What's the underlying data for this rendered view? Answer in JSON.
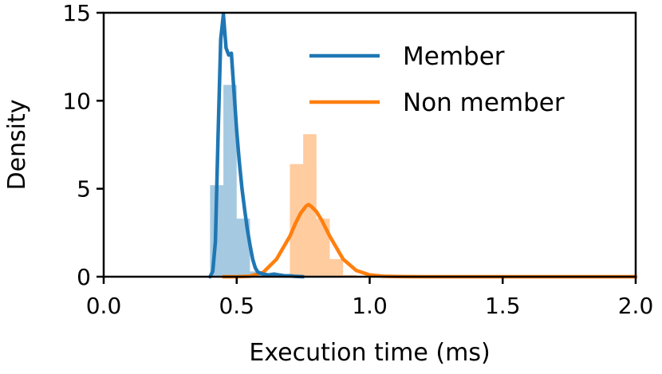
{
  "chart_data": {
    "type": "histogram-kde",
    "xlabel": "Execution time (ms)",
    "ylabel": "Density",
    "xlim": [
      0.0,
      2.0
    ],
    "ylim": [
      0,
      15
    ],
    "xticks": [
      0.0,
      0.5,
      1.0,
      1.5,
      2.0
    ],
    "xtick_labels": [
      "0.0",
      "0.5",
      "1.0",
      "1.5",
      "2.0"
    ],
    "yticks": [
      0,
      5,
      10,
      15
    ],
    "ytick_labels": [
      "0",
      "5",
      "10",
      "15"
    ],
    "legend_position": "upper-right",
    "series": [
      {
        "name": "Member",
        "color": "#1f77b4",
        "histogram": {
          "bin_edges": [
            0.4,
            0.45,
            0.5,
            0.55,
            0.6
          ],
          "density": [
            5.2,
            10.9,
            3.3,
            0.3
          ]
        },
        "kde": {
          "x": [
            0.4,
            0.41,
            0.42,
            0.43,
            0.44,
            0.45,
            0.46,
            0.47,
            0.48,
            0.49,
            0.5,
            0.51,
            0.52,
            0.53,
            0.54,
            0.55,
            0.56,
            0.57,
            0.58,
            0.6,
            0.62,
            0.64,
            0.66,
            0.68,
            0.7,
            0.72,
            0.75
          ],
          "y": [
            0.0,
            0.3,
            2.0,
            8.0,
            13.5,
            14.9,
            13.0,
            12.6,
            12.7,
            10.5,
            8.3,
            6.5,
            5.0,
            3.8,
            2.7,
            1.8,
            1.0,
            0.5,
            0.25,
            0.15,
            0.1,
            0.15,
            0.1,
            0.05,
            0.05,
            0.02,
            0.0
          ]
        }
      },
      {
        "name": "Non member",
        "color": "#ff7f0e",
        "histogram": {
          "bin_edges": [
            0.7,
            0.75,
            0.8,
            0.85,
            0.9,
            0.95
          ],
          "density": [
            6.4,
            8.1,
            3.3,
            1.0,
            0.1
          ]
        },
        "kde": {
          "x": [
            0.45,
            0.5,
            0.55,
            0.6,
            0.65,
            0.7,
            0.72,
            0.74,
            0.76,
            0.77,
            0.78,
            0.8,
            0.82,
            0.85,
            0.9,
            0.95,
            1.0,
            1.05,
            1.1,
            1.2,
            1.4,
            1.6,
            1.8,
            2.0
          ],
          "y": [
            0.0,
            0.0,
            0.03,
            0.25,
            1.0,
            2.3,
            3.0,
            3.6,
            4.0,
            4.1,
            4.0,
            3.7,
            3.2,
            2.3,
            1.0,
            0.35,
            0.1,
            0.03,
            0.01,
            0.0,
            0.0,
            0.0,
            0.0,
            0.0
          ]
        }
      }
    ]
  }
}
